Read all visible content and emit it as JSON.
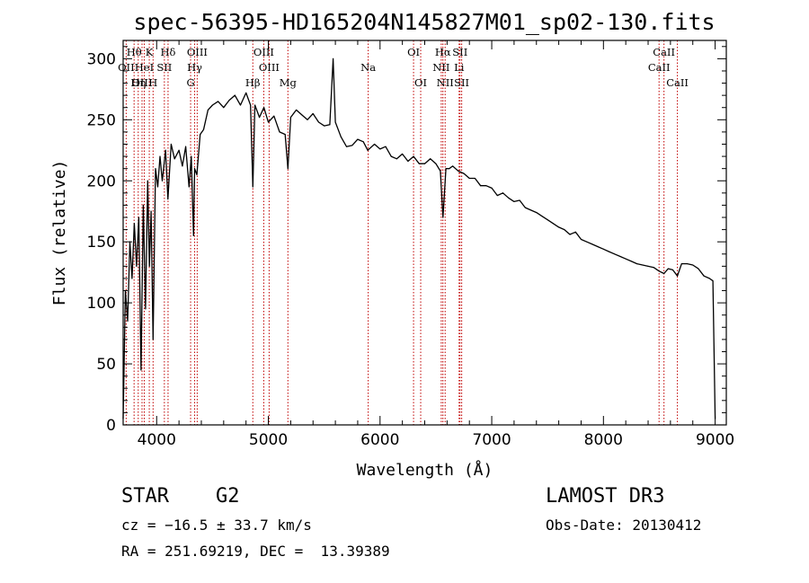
{
  "chart_data": {
    "type": "line",
    "title": "spec-56395-HD165204N145827M01_sp02-130.fits",
    "xlabel": "Wavelength (Å)",
    "ylabel": "Flux (relative)",
    "xlim": [
      3700,
      9100
    ],
    "ylim": [
      0,
      315
    ],
    "xticks": [
      4000,
      5000,
      6000,
      7000,
      8000,
      9000
    ],
    "yticks": [
      0,
      50,
      100,
      150,
      200,
      250,
      300
    ],
    "series": [
      {
        "name": "flux",
        "x": [
          3700,
          3720,
          3740,
          3760,
          3780,
          3800,
          3820,
          3840,
          3860,
          3880,
          3900,
          3920,
          3935,
          3950,
          3968,
          3990,
          4010,
          4030,
          4050,
          4080,
          4101,
          4130,
          4160,
          4200,
          4230,
          4260,
          4290,
          4310,
          4330,
          4340,
          4360,
          4390,
          4420,
          4460,
          4500,
          4550,
          4600,
          4650,
          4700,
          4750,
          4800,
          4840,
          4861,
          4880,
          4920,
          4960,
          5000,
          5050,
          5100,
          5150,
          5175,
          5200,
          5250,
          5300,
          5350,
          5400,
          5450,
          5500,
          5550,
          5580,
          5600,
          5650,
          5700,
          5750,
          5800,
          5850,
          5890,
          5950,
          6000,
          6050,
          6100,
          6150,
          6200,
          6250,
          6300,
          6350,
          6400,
          6450,
          6500,
          6540,
          6563,
          6590,
          6620,
          6650,
          6700,
          6750,
          6800,
          6850,
          6900,
          6950,
          7000,
          7050,
          7100,
          7150,
          7200,
          7250,
          7300,
          7350,
          7400,
          7450,
          7500,
          7550,
          7600,
          7650,
          7700,
          7750,
          7800,
          7850,
          7900,
          7950,
          8000,
          8050,
          8100,
          8150,
          8200,
          8250,
          8300,
          8350,
          8400,
          8450,
          8498,
          8542,
          8580,
          8620,
          8662,
          8700,
          8750,
          8800,
          8850,
          8900,
          8950,
          8980,
          9000
        ],
        "y": [
          5,
          110,
          85,
          150,
          120,
          165,
          130,
          170,
          45,
          180,
          95,
          200,
          130,
          175,
          70,
          210,
          195,
          220,
          200,
          225,
          185,
          230,
          218,
          225,
          212,
          228,
          195,
          220,
          155,
          210,
          205,
          238,
          242,
          258,
          262,
          265,
          260,
          266,
          270,
          262,
          272,
          262,
          195,
          262,
          252,
          260,
          248,
          253,
          240,
          238,
          210,
          252,
          258,
          254,
          250,
          255,
          248,
          245,
          246,
          300,
          248,
          236,
          228,
          229,
          234,
          232,
          225,
          230,
          226,
          228,
          220,
          218,
          222,
          216,
          220,
          214,
          214,
          218,
          214,
          208,
          170,
          210,
          210,
          212,
          208,
          206,
          202,
          202,
          196,
          196,
          194,
          188,
          190,
          186,
          183,
          184,
          178,
          176,
          174,
          171,
          168,
          165,
          162,
          160,
          156,
          158,
          152,
          150,
          148,
          146,
          144,
          142,
          140,
          138,
          136,
          134,
          132,
          131,
          130,
          129,
          126,
          124,
          128,
          127,
          122,
          132,
          132,
          131,
          128,
          122,
          120,
          118,
          5
        ]
      }
    ],
    "emission_lines": [
      {
        "label": "Hθ",
        "wavelength": 3798,
        "row": 1
      },
      {
        "label": "OII",
        "wavelength": 3727,
        "row": 2
      },
      {
        "label": "OIII",
        "wavelength": 3869,
        "row": 3
      },
      {
        "label": "Hη",
        "wavelength": 3835,
        "row": 3
      },
      {
        "label": "HeI",
        "wavelength": 3889,
        "row": 2
      },
      {
        "label": "K",
        "wavelength": 3934,
        "row": 1
      },
      {
        "label": "SII",
        "wavelength": 4069,
        "row": 2
      },
      {
        "label": "H",
        "wavelength": 3968,
        "row": 3
      },
      {
        "label": "Hδ",
        "wavelength": 4102,
        "row": 1
      },
      {
        "label": "OIII",
        "wavelength": 4363,
        "row": 1
      },
      {
        "label": "Hγ",
        "wavelength": 4340,
        "row": 2
      },
      {
        "label": "G",
        "wavelength": 4304,
        "row": 3
      },
      {
        "label": "Hβ",
        "wavelength": 4861,
        "row": 3
      },
      {
        "label": "OIII",
        "wavelength": 4959,
        "row": 1
      },
      {
        "label": "OIII",
        "wavelength": 5007,
        "row": 2
      },
      {
        "label": "Mg",
        "wavelength": 5175,
        "row": 3
      },
      {
        "label": "Na",
        "wavelength": 5894,
        "row": 2
      },
      {
        "label": "OI",
        "wavelength": 6300,
        "row": 1
      },
      {
        "label": "OI",
        "wavelength": 6364,
        "row": 3
      },
      {
        "label": "Hα",
        "wavelength": 6563,
        "row": 1
      },
      {
        "label": "NII",
        "wavelength": 6548,
        "row": 2
      },
      {
        "label": "NII",
        "wavelength": 6583,
        "row": 3
      },
      {
        "label": "SII",
        "wavelength": 6716,
        "row": 1
      },
      {
        "label": "Li",
        "wavelength": 6708,
        "row": 2
      },
      {
        "label": "SII",
        "wavelength": 6731,
        "row": 3
      },
      {
        "label": "CaII",
        "wavelength": 8542,
        "row": 1
      },
      {
        "label": "CaII",
        "wavelength": 8498,
        "row": 2
      },
      {
        "label": "CaII",
        "wavelength": 8662,
        "row": 3
      }
    ]
  },
  "info": {
    "object_class": "STAR",
    "subclass": "G2",
    "survey": "LAMOST DR3",
    "redshift": "cz = −16.5 ± 33.7 km/s",
    "obs_date": "Obs-Date: 20130412",
    "coords": "RA = 251.69219, DEC =  13.39389"
  }
}
